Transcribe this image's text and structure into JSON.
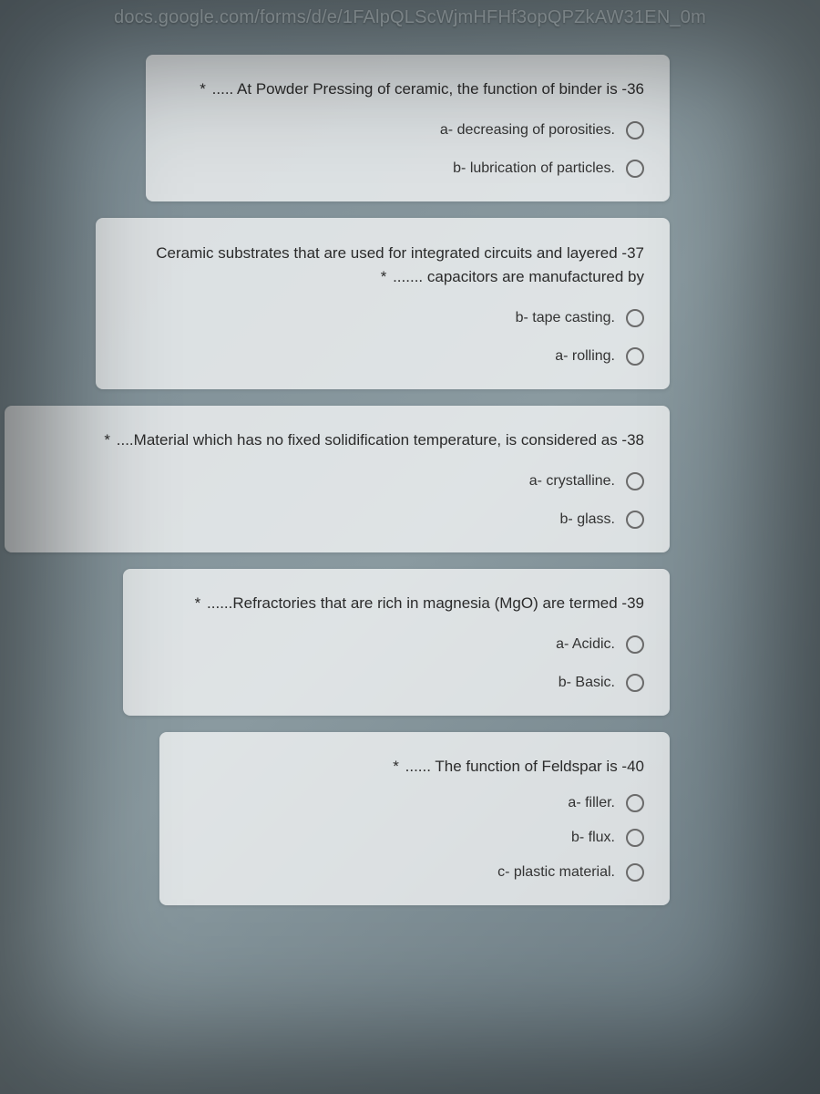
{
  "url": "docs.google.com/forms/d/e/1FAlpQLScWjmHFHf3opQPZkAW31EN_0m",
  "colors": {
    "card_bg": "rgba(255,255,255,0.72)",
    "text": "#2b2b2b",
    "option_text": "#333333",
    "radio_border": "#6b6b6b"
  },
  "questions": [
    {
      "required": "*",
      "title": "..... At Powder Pressing of ceramic, the function of binder is -36",
      "options": [
        "a- decreasing of porosities.",
        "b- lubrication of particles."
      ]
    },
    {
      "required": "*",
      "title_line1": "Ceramic substrates that are used for integrated circuits and layered -37",
      "title_line2": "....... capacitors are manufactured by",
      "options": [
        "b- tape casting.",
        "a- rolling."
      ]
    },
    {
      "required": "*",
      "title": "....Material which has no fixed solidification temperature, is considered as -38",
      "options": [
        "a- crystalline.",
        "b- glass."
      ]
    },
    {
      "required": "*",
      "title": "......Refractories that are rich in magnesia (MgO) are termed -39",
      "options": [
        "a- Acidic.",
        "b- Basic."
      ]
    },
    {
      "required": "*",
      "title": "...... The function of Feldspar is -40",
      "options": [
        "a- filler.",
        "b- flux.",
        "c- plastic material."
      ]
    }
  ]
}
